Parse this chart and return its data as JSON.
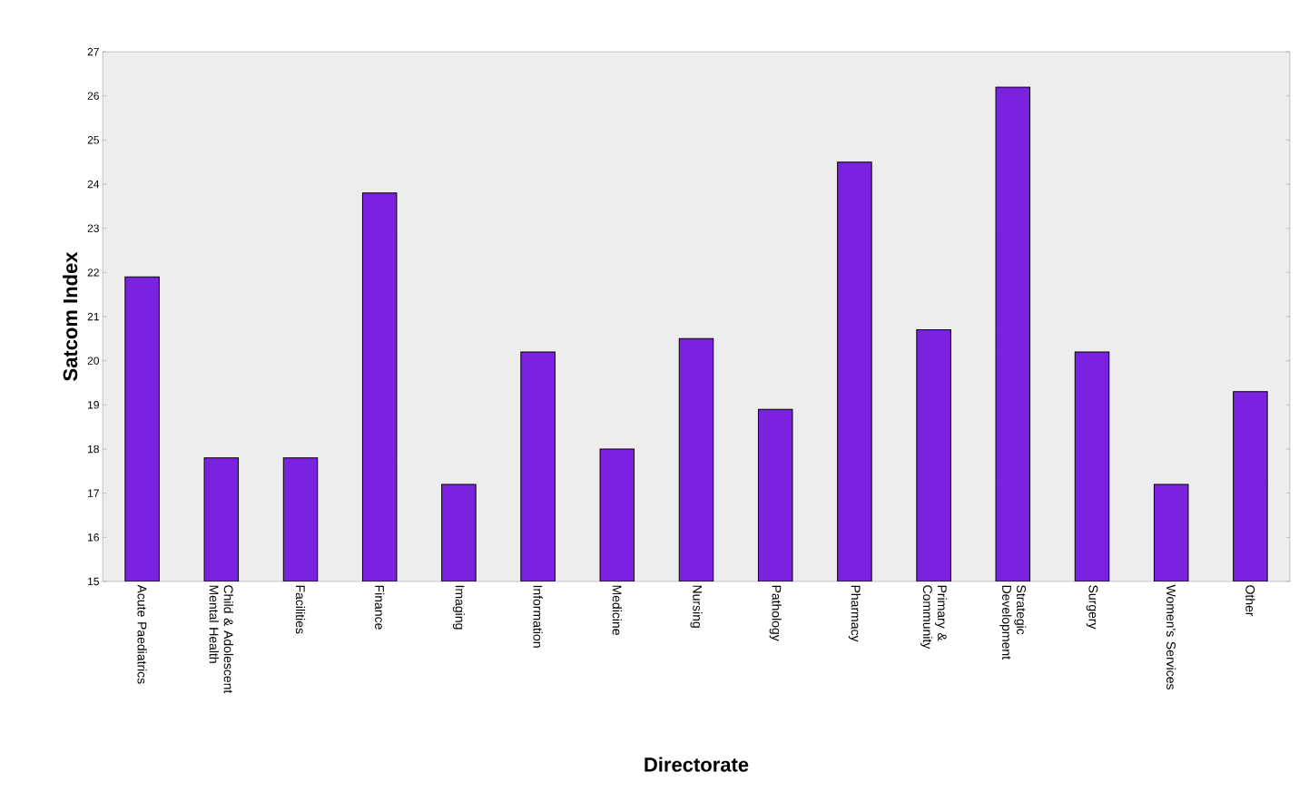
{
  "chart_data": {
    "type": "bar",
    "xlabel": "Directorate",
    "ylabel": "Satcom Index",
    "categories": [
      "Acute Paediatrics",
      "Child & Adolescent Mental Health",
      "Facilities",
      "Finance",
      "Imaging",
      "Information",
      "Medicine",
      "Nursing",
      "Pathology",
      "Pharmacy",
      "Primary & Community",
      "Strategic Development",
      "Surgery",
      "Women's Services",
      "Other"
    ],
    "values": [
      21.9,
      17.8,
      17.8,
      23.8,
      17.2,
      20.2,
      18.0,
      20.5,
      18.9,
      24.5,
      20.7,
      26.2,
      20.2,
      17.2,
      19.3
    ],
    "color": "#7b22e0",
    "ylim": [
      15,
      27
    ],
    "yticks": [
      15,
      16,
      17,
      18,
      19,
      20,
      21,
      22,
      23,
      24,
      25,
      26,
      27
    ],
    "grid": false
  }
}
